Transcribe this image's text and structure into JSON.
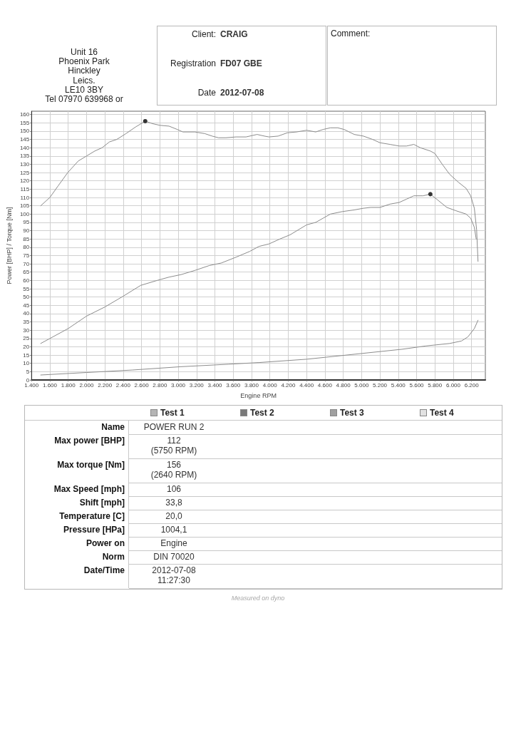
{
  "chart_data": {
    "type": "line",
    "xlabel": "Engine RPM",
    "ylabel": "Power [BHP] / Torque [Nm]",
    "xlim": [
      1400,
      6350
    ],
    "ylim": [
      0,
      162
    ],
    "xticks": [
      {
        "value": 1400,
        "label": "1.400"
      },
      {
        "value": 1600,
        "label": "1.600"
      },
      {
        "value": 1800,
        "label": "1.800"
      },
      {
        "value": 2000,
        "label": "2.000"
      },
      {
        "value": 2200,
        "label": "2.200"
      },
      {
        "value": 2400,
        "label": "2.400"
      },
      {
        "value": 2600,
        "label": "2.600"
      },
      {
        "value": 2800,
        "label": "2.800"
      },
      {
        "value": 3000,
        "label": "3.000"
      },
      {
        "value": 3200,
        "label": "3.200"
      },
      {
        "value": 3400,
        "label": "3.400"
      },
      {
        "value": 3600,
        "label": "3.600"
      },
      {
        "value": 3800,
        "label": "3.800"
      },
      {
        "value": 4000,
        "label": "4.000"
      },
      {
        "value": 4200,
        "label": "4.200"
      },
      {
        "value": 4400,
        "label": "4.400"
      },
      {
        "value": 4600,
        "label": "4.600"
      },
      {
        "value": 4800,
        "label": "4.800"
      },
      {
        "value": 5000,
        "label": "5.000"
      },
      {
        "value": 5200,
        "label": "5.200"
      },
      {
        "value": 5400,
        "label": "5.400"
      },
      {
        "value": 5600,
        "label": "5.600"
      },
      {
        "value": 5800,
        "label": "5.800"
      },
      {
        "value": 6000,
        "label": "6.000"
      },
      {
        "value": 6200,
        "label": "6.200"
      }
    ],
    "yticks": [
      0,
      5,
      10,
      15,
      20,
      25,
      30,
      35,
      40,
      45,
      50,
      55,
      60,
      65,
      70,
      75,
      80,
      85,
      90,
      95,
      100,
      105,
      110,
      115,
      120,
      125,
      130,
      135,
      140,
      145,
      150,
      155,
      160
    ],
    "grid": true,
    "marker": "none",
    "series": [
      {
        "color": "#8c8c8c",
        "x": [
          1500,
          1600,
          1690,
          1795,
          1910,
          2000,
          2090,
          2170,
          2250,
          2330,
          2430,
          2535,
          2640,
          2720,
          2800,
          2900,
          2990,
          3050,
          3180,
          3290,
          3370,
          3440,
          3520,
          3630,
          3740,
          3860,
          3940,
          3990,
          4090,
          4190,
          4290,
          4400,
          4500,
          4580,
          4660,
          4740,
          4810,
          4920,
          5020,
          5120,
          5200,
          5310,
          5410,
          5490,
          5570,
          5640,
          5750,
          5800,
          5880,
          5960,
          6060,
          6140,
          6190,
          6230,
          6255,
          6270
        ],
        "values": [
          105,
          110,
          117,
          125,
          132,
          135,
          138,
          140,
          143.5,
          145,
          148.5,
          152.5,
          156,
          154.5,
          153.5,
          153,
          151,
          149.5,
          149.5,
          148.5,
          147,
          146,
          146,
          146.5,
          146.5,
          148,
          147,
          146.5,
          147,
          149,
          149.5,
          150.5,
          149.5,
          151,
          152,
          152,
          151,
          148,
          147,
          145,
          143,
          142,
          141,
          141,
          142,
          140,
          138,
          136.5,
          130,
          124,
          119,
          115.5,
          111,
          103.5,
          90.5,
          71.5
        ]
      },
      {
        "color": "#8c8c8c",
        "x": [
          1500,
          1600,
          1800,
          2000,
          2200,
          2400,
          2590,
          2770,
          2900,
          3030,
          3180,
          3340,
          3470,
          3630,
          3780,
          3880,
          3990,
          4110,
          4220,
          4400,
          4500,
          4580,
          4660,
          4790,
          4920,
          5020,
          5100,
          5200,
          5310,
          5410,
          5490,
          5570,
          5670,
          5750,
          5830,
          5930,
          6030,
          6140,
          6190,
          6230,
          6250
        ],
        "values": [
          22,
          25,
          31,
          38.5,
          44,
          50.5,
          57,
          60,
          62,
          63.5,
          66,
          69,
          70.5,
          74,
          77.5,
          80.5,
          82,
          85,
          87.5,
          93.5,
          95,
          97.5,
          100,
          101.5,
          102.5,
          103.5,
          104,
          104,
          106,
          107,
          109,
          111,
          111,
          112,
          108.5,
          104,
          102,
          100,
          97.5,
          92,
          85
        ]
      },
      {
        "color": "#8c8c8c",
        "x": [
          1500,
          2000,
          2500,
          3030,
          3550,
          3880,
          4010,
          4400,
          4920,
          5440,
          5700,
          5960,
          6090,
          6160,
          6230,
          6270
        ],
        "values": [
          3,
          4.5,
          6,
          8,
          9.5,
          10.5,
          11,
          12.5,
          15.5,
          18.5,
          20.5,
          22,
          23.5,
          26,
          31,
          36
        ]
      },
      {
        "type": "scatter",
        "marker": "circle",
        "color": "#333333",
        "x": [
          2640,
          5750
        ],
        "values": [
          156,
          112
        ]
      }
    ],
    "annotations": [
      "Unit 16",
      "Phoenix Park",
      "Hinckley",
      "Leics.",
      "LE10 3BY",
      "Tel 07970 639968 or",
      "Client:",
      "CRAIG",
      "Registration",
      "FD07 GBE",
      "Date",
      "2012-07-08",
      "Comment:",
      "Test 1",
      "Test 2",
      "Test 3",
      "Test 4",
      "Name",
      "POWER RUN 2",
      "Max power [BHP]",
      "112\n(5750 RPM)",
      "Max torque [Nm]",
      "156\n(2640 RPM)",
      "Max Speed [mph]",
      "106",
      "Shift [mph]",
      "33,8",
      "Temperature [C]",
      "20,0",
      "Pressure [HPa]",
      "1004,1",
      "Power on",
      "Engine",
      "Norm",
      "DIN 70020",
      "Date/Time",
      "2012-07-08\n11:27:30",
      "Measured on dyno"
    ]
  }
}
